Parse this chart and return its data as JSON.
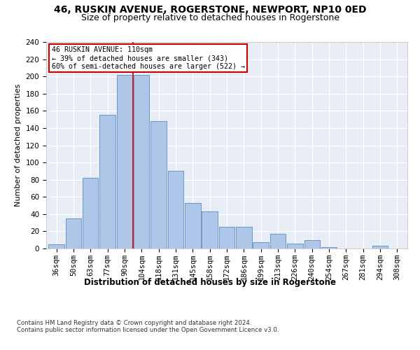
{
  "title": "46, RUSKIN AVENUE, ROGERSTONE, NEWPORT, NP10 0ED",
  "subtitle": "Size of property relative to detached houses in Rogerstone",
  "xlabel": "Distribution of detached houses by size in Rogerstone",
  "ylabel": "Number of detached properties",
  "categories": [
    "36sqm",
    "50sqm",
    "63sqm",
    "77sqm",
    "90sqm",
    "104sqm",
    "118sqm",
    "131sqm",
    "145sqm",
    "158sqm",
    "172sqm",
    "186sqm",
    "199sqm",
    "213sqm",
    "226sqm",
    "240sqm",
    "254sqm",
    "267sqm",
    "281sqm",
    "294sqm",
    "308sqm"
  ],
  "values": [
    5,
    35,
    82,
    155,
    202,
    202,
    148,
    90,
    53,
    43,
    25,
    25,
    7,
    17,
    6,
    10,
    2,
    0,
    0,
    3,
    0
  ],
  "bar_color": "#aec6e8",
  "bar_edge_color": "#5a8fc2",
  "annotation_line1": "46 RUSKIN AVENUE: 110sqm",
  "annotation_line2": "← 39% of detached houses are smaller (343)",
  "annotation_line3": "60% of semi-detached houses are larger (522) →",
  "vline_position": 4.5,
  "vline_color": "#cc0000",
  "annotation_box_color": "#ffffff",
  "annotation_box_edge_color": "#cc0000",
  "ylim": [
    0,
    240
  ],
  "yticks": [
    0,
    20,
    40,
    60,
    80,
    100,
    120,
    140,
    160,
    180,
    200,
    220,
    240
  ],
  "plot_background": "#e8edf5",
  "footer_line1": "Contains HM Land Registry data © Crown copyright and database right 2024.",
  "footer_line2": "Contains public sector information licensed under the Open Government Licence v3.0.",
  "title_fontsize": 10,
  "subtitle_fontsize": 9,
  "axis_label_fontsize": 8.5,
  "tick_fontsize": 7.5,
  "ylabel_fontsize": 8
}
